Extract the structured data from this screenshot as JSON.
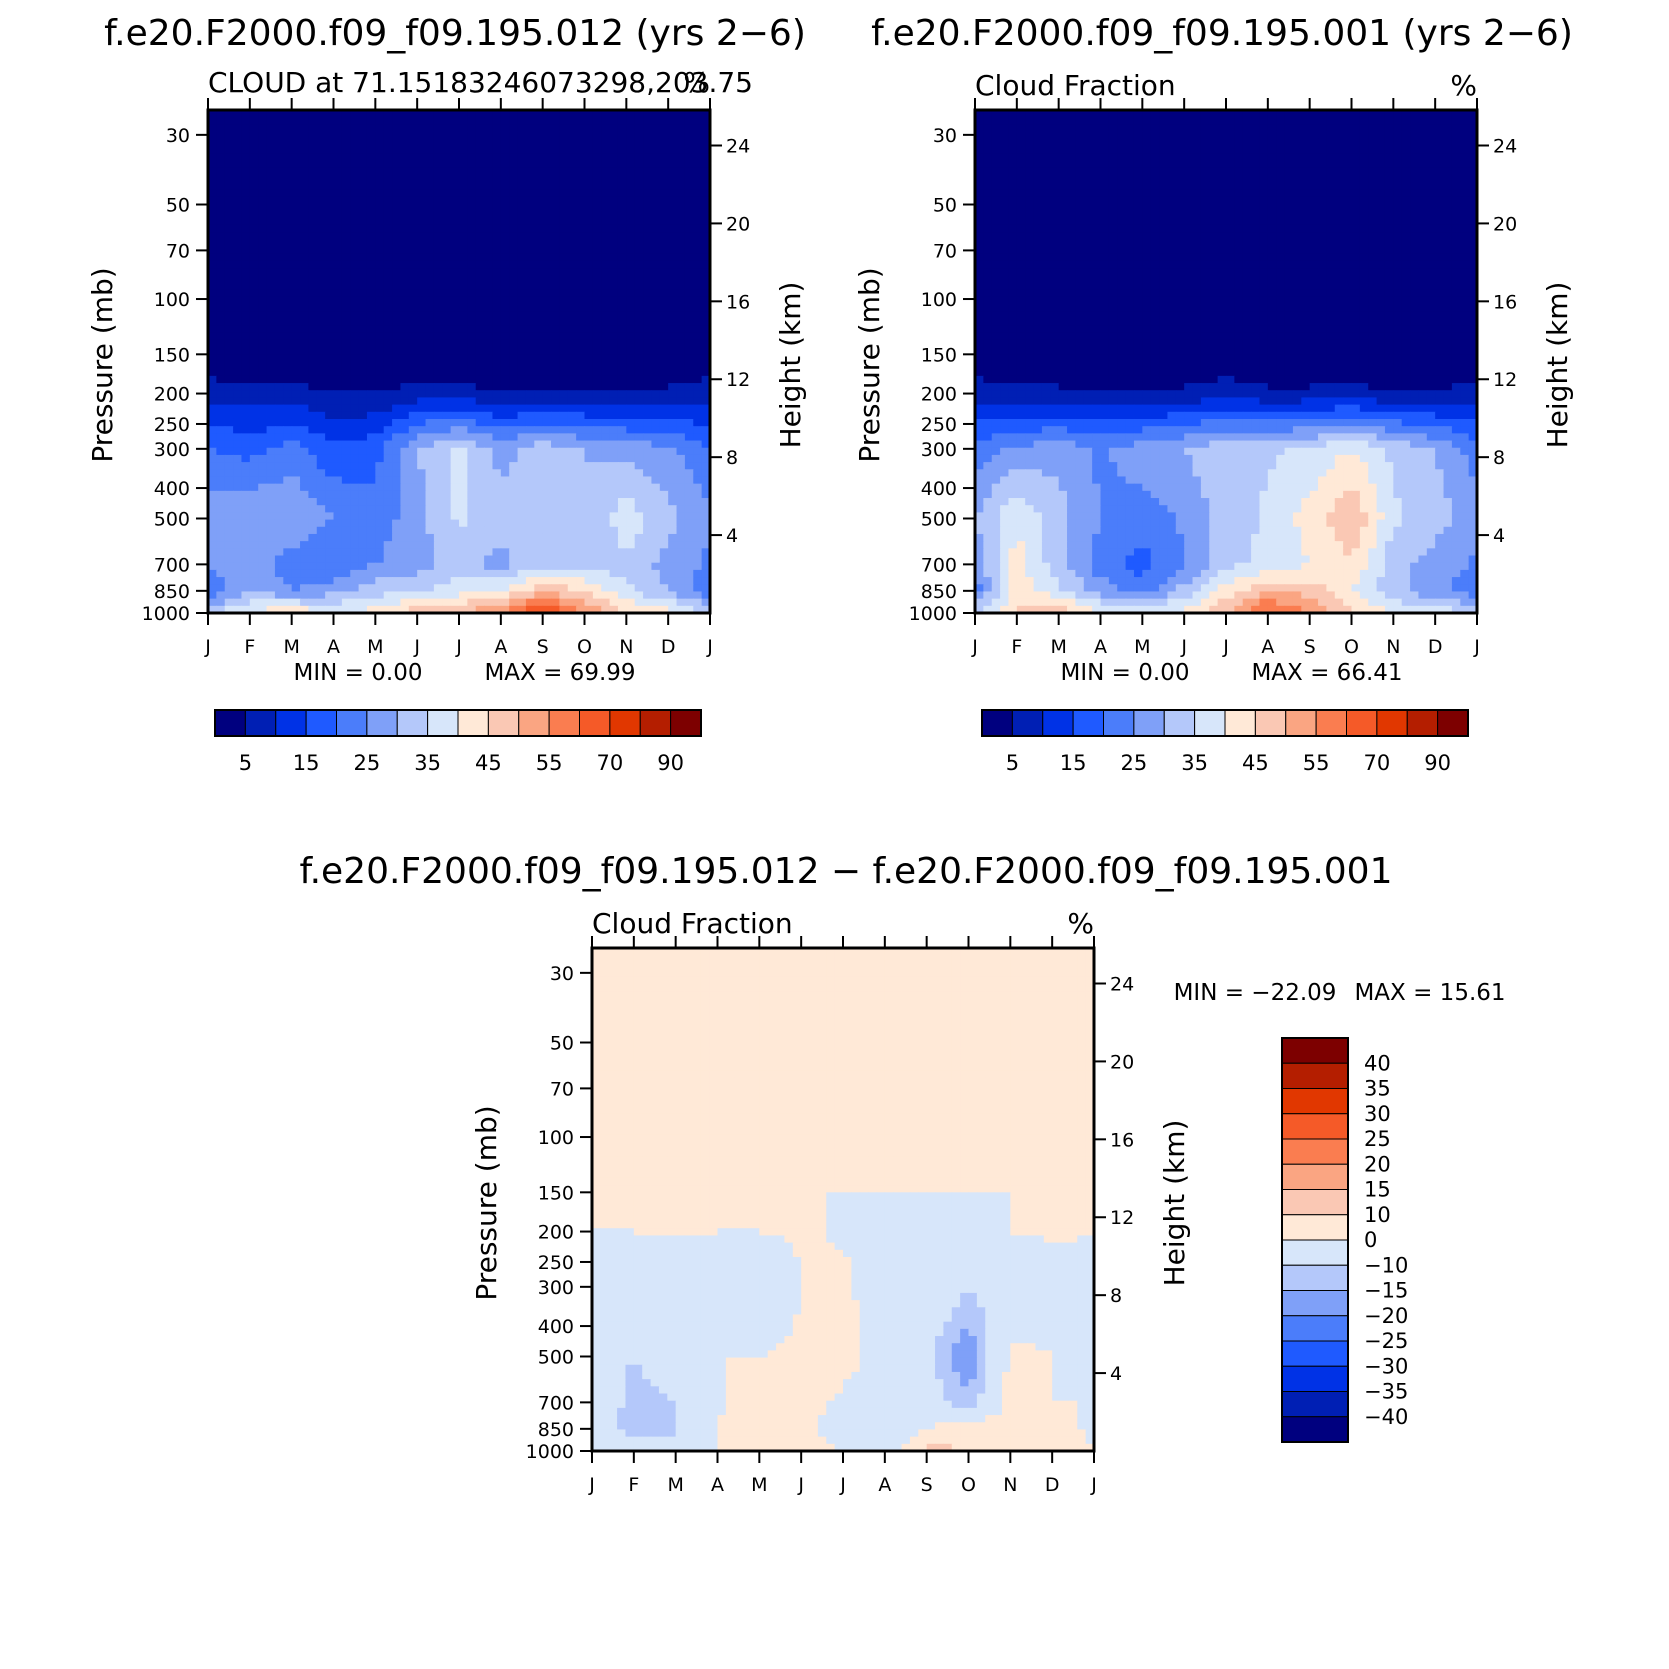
{
  "chart_data": [
    {
      "type": "heatmap",
      "title": "f.e20.F2000.f09_f09.195.012 (yrs 2−6)",
      "subtitle_left": "CLOUD at 71.15183246073298,203.75",
      "subtitle_right": "%",
      "ylabel": "Pressure (mb)",
      "ylabel_right": "Height (km)",
      "x_ticks": [
        "J",
        "F",
        "M",
        "A",
        "M",
        "J",
        "J",
        "A",
        "S",
        "O",
        "N",
        "D",
        "J"
      ],
      "y_ticks": [
        "30",
        "50",
        "70",
        "100",
        "150",
        "200",
        "250",
        "300",
        "400",
        "500",
        "700",
        "850",
        "1000"
      ],
      "y_ticks_right": [
        "24",
        "20",
        "16",
        "12",
        "8",
        "4"
      ],
      "yscale": "log",
      "ylim": [
        1000,
        25
      ],
      "min_text": "MIN =     0.00",
      "max_text": "MAX =    69.99",
      "min": 0.0,
      "max": 69.99,
      "colorbar": {
        "levels": [
          "5",
          "15",
          "25",
          "35",
          "45",
          "55",
          "70",
          "90"
        ],
        "colors": [
          "#00007f",
          "#001fb4",
          "#0032e6",
          "#1f5aff",
          "#4b7dfa",
          "#7fa0f8",
          "#b4c8fa",
          "#d7e6fa",
          "#ffe9d7",
          "#fac8b4",
          "#faa582",
          "#fa7d50",
          "#f55a28",
          "#e13700",
          "#b41e00",
          "#7d0000"
        ]
      },
      "profiles": [
        {
          "month": "J",
          "p200": 8,
          "p300": 20,
          "p500": 28,
          "p700": 26,
          "p850": 20,
          "p1000": 35
        },
        {
          "month": "F",
          "p200": 7,
          "p300": 18,
          "p500": 30,
          "p700": 28,
          "p850": 30,
          "p1000": 40
        },
        {
          "month": "M",
          "p200": 7,
          "p300": 22,
          "p500": 30,
          "p700": 22,
          "p850": 25,
          "p1000": 45
        },
        {
          "month": "A",
          "p200": 5,
          "p300": 16,
          "p500": 25,
          "p700": 20,
          "p850": 28,
          "p1000": 40
        },
        {
          "month": "M",
          "p200": 5,
          "p300": 18,
          "p500": 22,
          "p700": 25,
          "p850": 33,
          "p1000": 42
        },
        {
          "month": "J",
          "p200": 7,
          "p300": 30,
          "p500": 28,
          "p700": 28,
          "p850": 34,
          "p1000": 48
        },
        {
          "month": "J",
          "p200": 7,
          "p300": 36,
          "p500": 36,
          "p700": 32,
          "p850": 38,
          "p1000": 50
        },
        {
          "month": "A",
          "p200": 5,
          "p300": 28,
          "p500": 32,
          "p700": 28,
          "p850": 40,
          "p1000": 55
        },
        {
          "month": "S",
          "p200": 6,
          "p300": 33,
          "p500": 34,
          "p700": 34,
          "p850": 48,
          "p1000": 68
        },
        {
          "month": "O",
          "p200": 5,
          "p300": 30,
          "p500": 30,
          "p700": 30,
          "p850": 46,
          "p1000": 55
        },
        {
          "month": "N",
          "p200": 5,
          "p300": 28,
          "p500": 38,
          "p700": 34,
          "p850": 36,
          "p1000": 45
        },
        {
          "month": "D",
          "p200": 6,
          "p300": 26,
          "p500": 32,
          "p700": 28,
          "p850": 30,
          "p1000": 42
        },
        {
          "month": "J",
          "p200": 8,
          "p300": 20,
          "p500": 26,
          "p700": 24,
          "p850": 20,
          "p1000": 35
        }
      ]
    },
    {
      "type": "heatmap",
      "title": "f.e20.F2000.f09_f09.195.001 (yrs 2−6)",
      "subtitle_left": "Cloud Fraction",
      "subtitle_right": "%",
      "ylabel": "Pressure (mb)",
      "ylabel_right": "Height (km)",
      "x_ticks": [
        "J",
        "F",
        "M",
        "A",
        "M",
        "J",
        "J",
        "A",
        "S",
        "O",
        "N",
        "D",
        "J"
      ],
      "y_ticks": [
        "30",
        "50",
        "70",
        "100",
        "150",
        "200",
        "250",
        "300",
        "400",
        "500",
        "700",
        "850",
        "1000"
      ],
      "y_ticks_right": [
        "24",
        "20",
        "16",
        "12",
        "8",
        "4"
      ],
      "yscale": "log",
      "ylim": [
        1000,
        25
      ],
      "min_text": "MIN =     0.00",
      "max_text": "MAX =    66.41",
      "min": 0.0,
      "max": 66.41,
      "colorbar": {
        "levels": [
          "5",
          "15",
          "25",
          "35",
          "45",
          "55",
          "70",
          "90"
        ],
        "colors": [
          "#00007f",
          "#001fb4",
          "#0032e6",
          "#1f5aff",
          "#4b7dfa",
          "#7fa0f8",
          "#b4c8fa",
          "#d7e6fa",
          "#ffe9d7",
          "#fac8b4",
          "#faa582",
          "#fa7d50",
          "#f55a28",
          "#e13700",
          "#b41e00",
          "#7d0000"
        ]
      },
      "profiles": [
        {
          "month": "J",
          "p200": 8,
          "p300": 22,
          "p500": 30,
          "p700": 26,
          "p850": 22,
          "p1000": 35
        },
        {
          "month": "F",
          "p200": 7,
          "p300": 26,
          "p500": 40,
          "p700": 42,
          "p850": 44,
          "p1000": 45
        },
        {
          "month": "M",
          "p200": 6,
          "p300": 28,
          "p500": 32,
          "p700": 32,
          "p850": 36,
          "p1000": 50
        },
        {
          "month": "A",
          "p200": 5,
          "p300": 24,
          "p500": 25,
          "p700": 22,
          "p850": 28,
          "p1000": 40
        },
        {
          "month": "M",
          "p200": 5,
          "p300": 28,
          "p500": 22,
          "p700": 18,
          "p850": 22,
          "p1000": 38
        },
        {
          "month": "J",
          "p200": 6,
          "p300": 30,
          "p500": 26,
          "p700": 24,
          "p850": 32,
          "p1000": 42
        },
        {
          "month": "J",
          "p200": 8,
          "p300": 34,
          "p500": 32,
          "p700": 34,
          "p850": 42,
          "p1000": 50
        },
        {
          "month": "A",
          "p200": 6,
          "p300": 34,
          "p500": 36,
          "p700": 36,
          "p850": 50,
          "p1000": 62
        },
        {
          "month": "S",
          "p200": 6,
          "p300": 36,
          "p500": 42,
          "p700": 40,
          "p850": 48,
          "p1000": 55
        },
        {
          "month": "O",
          "p200": 7,
          "p300": 40,
          "p500": 50,
          "p700": 44,
          "p850": 40,
          "p1000": 45
        },
        {
          "month": "N",
          "p200": 5,
          "p300": 34,
          "p500": 36,
          "p700": 32,
          "p850": 32,
          "p1000": 40
        },
        {
          "month": "D",
          "p200": 5,
          "p300": 30,
          "p500": 32,
          "p700": 28,
          "p850": 26,
          "p1000": 38
        },
        {
          "month": "J",
          "p200": 8,
          "p300": 22,
          "p500": 28,
          "p700": 24,
          "p850": 22,
          "p1000": 35
        }
      ]
    },
    {
      "type": "heatmap",
      "title": "f.e20.F2000.f09_f09.195.012 − f.e20.F2000.f09_f09.195.001",
      "subtitle_left": "Cloud Fraction",
      "subtitle_right": "%",
      "ylabel": "Pressure (mb)",
      "ylabel_right": "Height (km)",
      "x_ticks": [
        "J",
        "F",
        "M",
        "A",
        "M",
        "J",
        "J",
        "A",
        "S",
        "O",
        "N",
        "D",
        "J"
      ],
      "y_ticks": [
        "30",
        "50",
        "70",
        "100",
        "150",
        "200",
        "250",
        "300",
        "400",
        "500",
        "700",
        "850",
        "1000"
      ],
      "y_ticks_right": [
        "24",
        "20",
        "16",
        "12",
        "8",
        "4"
      ],
      "yscale": "log",
      "ylim": [
        1000,
        25
      ],
      "min_text": "MIN = −22.09",
      "max_text": "MAX =    15.61",
      "min": -22.09,
      "max": 15.61,
      "colorbar": {
        "levels": [
          "40",
          "35",
          "30",
          "25",
          "20",
          "15",
          "10",
          "0",
          "−10",
          "−15",
          "−20",
          "−25",
          "−30",
          "−35",
          "−40"
        ],
        "colors": [
          "#7d0000",
          "#b41e00",
          "#e13700",
          "#f55a28",
          "#fa7d50",
          "#faa582",
          "#fac8b4",
          "#ffe9d7",
          "#d7e6fa",
          "#b4c8fa",
          "#7fa0f8",
          "#4b7dfa",
          "#1f5aff",
          "#0032e6",
          "#001fb4",
          "#00007f"
        ]
      },
      "regions": [
        {
          "sign": "negative",
          "months": "J–M",
          "levels": "30–1000 mb",
          "value_range": "-10 to 0"
        },
        {
          "sign": "negative",
          "months": "F–M",
          "levels": "700–850 mb",
          "value_range": "-15 to -10"
        },
        {
          "sign": "negative",
          "months": "J–A",
          "levels": "850–1000 mb",
          "value_range": "-25 to -10"
        },
        {
          "sign": "positive",
          "months": "J",
          "levels": "300–400 mb",
          "value_range": "10 to 15"
        },
        {
          "sign": "positive",
          "months": "M–D",
          "levels": "30–150 mb",
          "value_range": "0 to 10"
        }
      ]
    }
  ]
}
